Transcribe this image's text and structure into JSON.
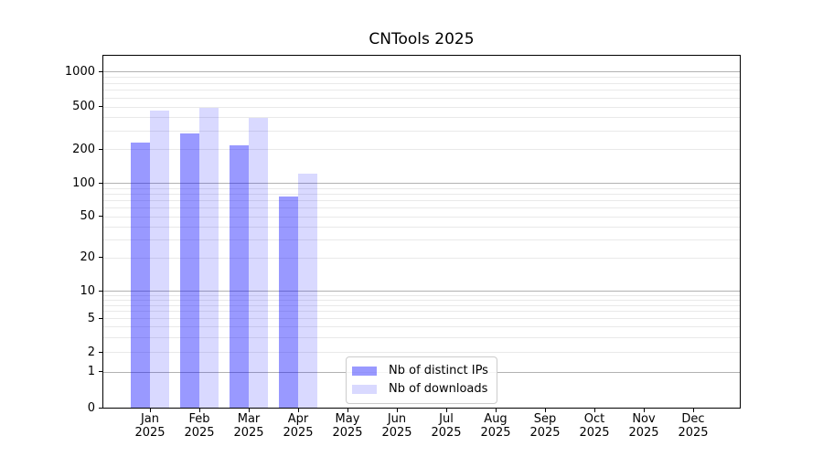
{
  "title": "CNTools 2025",
  "legend": {
    "items": [
      {
        "label": "Nb of distinct IPs",
        "color": "rgba(0,0,255,0.4)",
        "effective_hex": "#9999ff"
      },
      {
        "label": "Nb of downloads",
        "color": "rgba(0,0,255,0.15)",
        "effective_hex": "#d9d9ff"
      }
    ]
  },
  "chart_data": {
    "type": "bar",
    "title": "CNTools 2025",
    "categories": [
      "Jan 2025",
      "Feb 2025",
      "Mar 2025",
      "Apr 2025",
      "May 2025",
      "Jun 2025",
      "Jul 2025",
      "Aug 2025",
      "Sep 2025",
      "Oct 2025",
      "Nov 2025",
      "Dec 2025"
    ],
    "series": [
      {
        "name": "Nb of distinct IPs",
        "color": "rgba(0,0,255,0.4)",
        "values": [
          230,
          280,
          220,
          75,
          null,
          null,
          null,
          null,
          null,
          null,
          null,
          null
        ]
      },
      {
        "name": "Nb of downloads",
        "color": "rgba(0,0,255,0.15)",
        "values": [
          460,
          490,
          390,
          122,
          null,
          null,
          null,
          null,
          null,
          null,
          null,
          null
        ]
      }
    ],
    "xlabel": "",
    "ylabel": "",
    "yscale": "symlog",
    "yticks": [
      1000,
      500,
      200,
      100,
      50,
      20,
      10,
      5,
      2,
      1,
      0
    ],
    "ylim": [
      0,
      1400
    ],
    "grid": "horizontal major+minor",
    "legend_position": "lower center",
    "colors": {
      "major_grid": "#b2b2b2",
      "minor_grid": "#e9e9e9",
      "axis": "#000000"
    }
  }
}
